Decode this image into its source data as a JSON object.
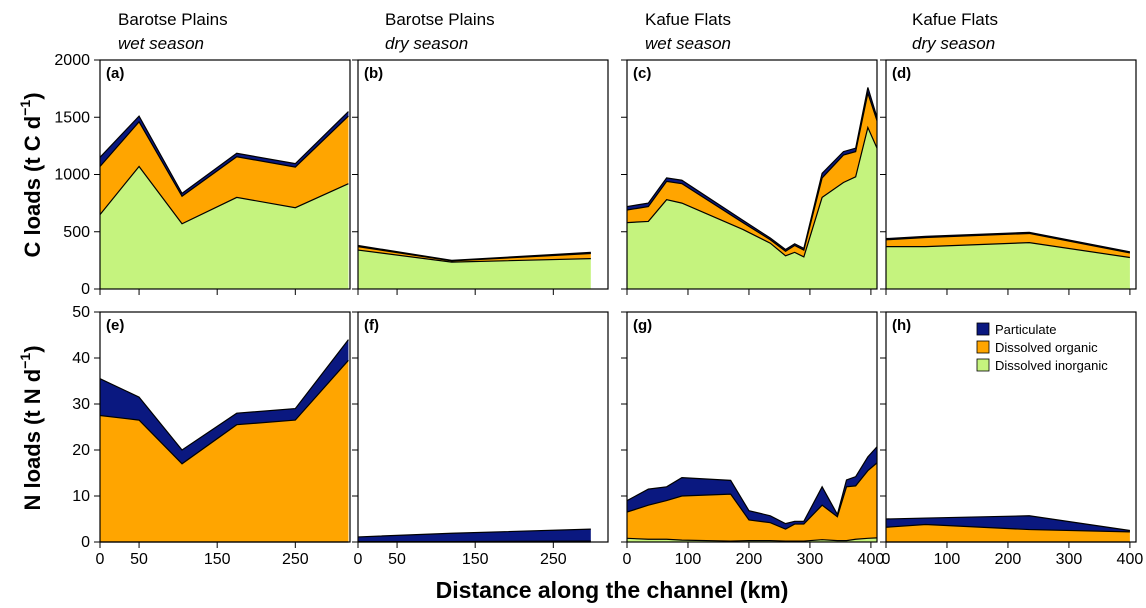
{
  "colors": {
    "particulate": "#0a1880",
    "dissolved_organic": "#ffa500",
    "dissolved_inorganic": "#c5f37e"
  },
  "columns": [
    {
      "site": "Barotse Plains",
      "season": "wet season"
    },
    {
      "site": "Barotse Plains",
      "season": "dry season"
    },
    {
      "site": "Kafue Flats",
      "season": "wet season"
    },
    {
      "site": "Kafue Flats",
      "season": "dry season"
    }
  ],
  "y_labels": {
    "carbon": "C loads (t C d",
    "nitrogen": "N loads (t N d",
    "exponent": "−1",
    "close": ")"
  },
  "x_label": "Distance along the channel (km)",
  "legend": [
    "Particulate",
    "Dissolved organic",
    "Dissolved inorganic"
  ],
  "chart_data": [
    {
      "panel": "(a)",
      "type": "area",
      "stacked": true,
      "xlim": [
        0,
        320
      ],
      "ylim": [
        0,
        2000
      ],
      "xticks": [
        0,
        50,
        150,
        250
      ],
      "yticks": [
        0,
        500,
        1000,
        1500,
        2000
      ],
      "x": [
        0,
        50,
        105,
        175,
        250,
        318
      ],
      "series": [
        {
          "name": "Dissolved inorganic",
          "values": [
            650,
            1070,
            570,
            800,
            710,
            920
          ]
        },
        {
          "name": "Dissolved organic",
          "values": [
            420,
            390,
            240,
            355,
            355,
            590
          ]
        },
        {
          "name": "Particulate",
          "values": [
            80,
            50,
            25,
            30,
            30,
            40
          ]
        }
      ]
    },
    {
      "panel": "(b)",
      "type": "area",
      "stacked": true,
      "xlim": [
        0,
        320
      ],
      "ylim": [
        0,
        2000
      ],
      "xticks": [
        0,
        50,
        150,
        250
      ],
      "yticks": [
        0,
        500,
        1000,
        1500,
        2000
      ],
      "x": [
        0,
        120,
        298
      ],
      "series": [
        {
          "name": "Dissolved inorganic",
          "values": [
            340,
            235,
            265
          ]
        },
        {
          "name": "Dissolved organic",
          "values": [
            30,
            10,
            45
          ]
        },
        {
          "name": "Particulate",
          "values": [
            10,
            5,
            10
          ]
        }
      ]
    },
    {
      "panel": "(c)",
      "type": "area",
      "stacked": true,
      "xlim": [
        0,
        410
      ],
      "ylim": [
        0,
        2000
      ],
      "xticks": [
        0,
        100,
        200,
        300,
        400
      ],
      "yticks": [
        0,
        500,
        1000,
        1500,
        2000
      ],
      "x": [
        0,
        35,
        65,
        90,
        190,
        235,
        260,
        275,
        290,
        320,
        355,
        375,
        395,
        410
      ],
      "series": [
        {
          "name": "Dissolved inorganic",
          "values": [
            580,
            590,
            780,
            750,
            520,
            400,
            290,
            320,
            280,
            800,
            930,
            980,
            1410,
            1230
          ]
        },
        {
          "name": "Dissolved organic",
          "values": [
            110,
            130,
            160,
            170,
            60,
            30,
            40,
            60,
            60,
            170,
            240,
            220,
            300,
            240
          ]
        },
        {
          "name": "Particulate",
          "values": [
            30,
            30,
            30,
            30,
            20,
            15,
            15,
            15,
            15,
            40,
            30,
            30,
            50,
            30
          ]
        }
      ]
    },
    {
      "panel": "(d)",
      "type": "area",
      "stacked": true,
      "xlim": [
        0,
        410
      ],
      "ylim": [
        0,
        2000
      ],
      "xticks": [
        0,
        100,
        200,
        300,
        400
      ],
      "yticks": [
        0,
        500,
        1000,
        1500,
        2000
      ],
      "x": [
        0,
        65,
        235,
        400
      ],
      "series": [
        {
          "name": "Dissolved inorganic",
          "values": [
            370,
            370,
            405,
            275
          ]
        },
        {
          "name": "Dissolved organic",
          "values": [
            60,
            80,
            80,
            40
          ]
        },
        {
          "name": "Particulate",
          "values": [
            10,
            10,
            10,
            10
          ]
        }
      ]
    },
    {
      "panel": "(e)",
      "type": "area",
      "stacked": true,
      "xlim": [
        0,
        320
      ],
      "ylim": [
        0,
        50
      ],
      "xticks": [
        0,
        50,
        150,
        250
      ],
      "yticks": [
        0,
        10,
        20,
        30,
        40,
        50
      ],
      "x": [
        0,
        50,
        105,
        175,
        250,
        318
      ],
      "series": [
        {
          "name": "Dissolved inorganic",
          "values": [
            0,
            0,
            0,
            0,
            0,
            0
          ]
        },
        {
          "name": "Dissolved organic",
          "values": [
            27.5,
            26.5,
            17,
            25.5,
            26.5,
            39.5
          ]
        },
        {
          "name": "Particulate",
          "values": [
            8,
            5,
            3,
            2.5,
            2.5,
            4.5
          ]
        }
      ]
    },
    {
      "panel": "(f)",
      "type": "area",
      "stacked": true,
      "xlim": [
        0,
        320
      ],
      "ylim": [
        0,
        50
      ],
      "xticks": [
        0,
        50,
        150,
        250
      ],
      "yticks": [
        0,
        10,
        20,
        30,
        40,
        50
      ],
      "x": [
        0,
        120,
        298
      ],
      "series": [
        {
          "name": "Dissolved inorganic",
          "values": [
            0,
            0,
            0
          ]
        },
        {
          "name": "Dissolved organic",
          "values": [
            0.1,
            0.1,
            0.2
          ]
        },
        {
          "name": "Particulate",
          "values": [
            1.0,
            1.8,
            2.6
          ]
        }
      ]
    },
    {
      "panel": "(g)",
      "type": "area",
      "stacked": true,
      "xlim": [
        0,
        410
      ],
      "ylim": [
        0,
        50
      ],
      "xticks": [
        0,
        100,
        200,
        300,
        400
      ],
      "yticks": [
        0,
        10,
        20,
        30,
        40,
        50
      ],
      "x": [
        0,
        35,
        65,
        90,
        170,
        200,
        235,
        260,
        275,
        290,
        320,
        345,
        360,
        375,
        395,
        410
      ],
      "series": [
        {
          "name": "Dissolved inorganic",
          "values": [
            0.8,
            0.6,
            0.6,
            0.4,
            0.2,
            0.3,
            0.3,
            0.2,
            0.2,
            0.2,
            0.5,
            0.3,
            0.3,
            0.6,
            0.8,
            0.9
          ]
        },
        {
          "name": "Dissolved organic",
          "values": [
            5.7,
            7.4,
            8.4,
            9.6,
            10.2,
            4.5,
            3.9,
            2.6,
            3.7,
            3.7,
            7.5,
            5.2,
            11.7,
            11.6,
            14.7,
            16.3
          ]
        },
        {
          "name": "Particulate",
          "values": [
            2.5,
            3.5,
            3.0,
            4.0,
            3.0,
            2.0,
            1.5,
            1.2,
            0.6,
            0.6,
            4.0,
            0.5,
            1.5,
            2.0,
            3.0,
            3.5
          ]
        }
      ]
    },
    {
      "panel": "(h)",
      "type": "area",
      "stacked": true,
      "xlim": [
        0,
        410
      ],
      "ylim": [
        0,
        50
      ],
      "xticks": [
        0,
        100,
        200,
        300,
        400
      ],
      "yticks": [
        0,
        10,
        20,
        30,
        40,
        50
      ],
      "x": [
        0,
        65,
        235,
        400
      ],
      "series": [
        {
          "name": "Dissolved inorganic",
          "values": [
            0,
            0,
            0,
            0
          ]
        },
        {
          "name": "Dissolved organic",
          "values": [
            3.2,
            3.8,
            2.7,
            2.2
          ]
        },
        {
          "name": "Particulate",
          "values": [
            1.8,
            1.4,
            3.0,
            0.3
          ]
        }
      ]
    }
  ]
}
